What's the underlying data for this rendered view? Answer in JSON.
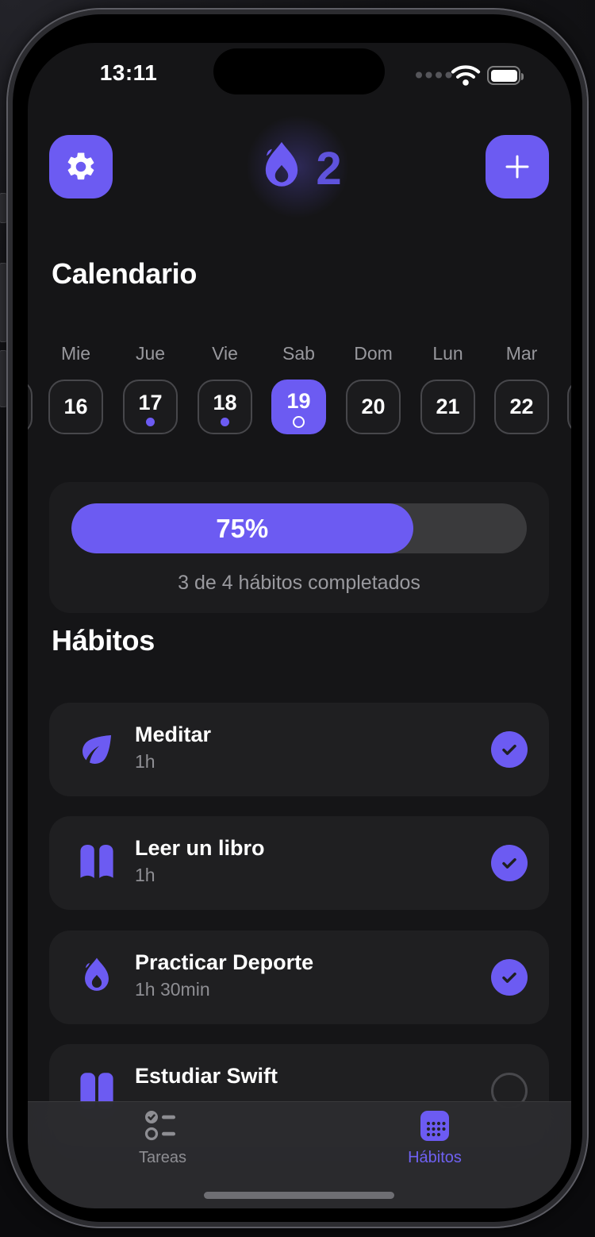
{
  "status_bar": {
    "time": "13:11"
  },
  "header": {
    "settings_icon": "gear-icon",
    "streak_icon": "flame-icon",
    "streak_count": "2",
    "add_icon": "plus-icon"
  },
  "calendar": {
    "title": "Calendario",
    "days": [
      {
        "label": "Mie",
        "date": "16",
        "selected": false,
        "dot": false
      },
      {
        "label": "Jue",
        "date": "17",
        "selected": false,
        "dot": true
      },
      {
        "label": "Vie",
        "date": "18",
        "selected": false,
        "dot": true
      },
      {
        "label": "Sab",
        "date": "19",
        "selected": true,
        "dot": false,
        "ring": true
      },
      {
        "label": "Dom",
        "date": "20",
        "selected": false,
        "dot": false
      },
      {
        "label": "Lun",
        "date": "21",
        "selected": false,
        "dot": false
      },
      {
        "label": "Mar",
        "date": "22",
        "selected": false,
        "dot": false
      }
    ]
  },
  "progress": {
    "percent": 75,
    "percent_label": "75%",
    "caption": "3 de 4 hábitos completados"
  },
  "habits": {
    "title": "Hábitos",
    "items": [
      {
        "name": "Meditar",
        "duration": "1h",
        "icon": "leaf-icon",
        "completed": true
      },
      {
        "name": "Leer un libro",
        "duration": "1h",
        "icon": "open-book-icon",
        "completed": true
      },
      {
        "name": "Practicar Deporte",
        "duration": "1h 30min",
        "icon": "flame-icon",
        "completed": true
      },
      {
        "name": "Estudiar Swift",
        "icon": "books-icon",
        "completed": false
      }
    ]
  },
  "tab_bar": {
    "items": [
      {
        "label": "Tareas",
        "icon": "checklist-icon",
        "active": false
      },
      {
        "label": "Hábitos",
        "icon": "calendar-icon",
        "active": true
      }
    ]
  },
  "colors": {
    "accent": "#6C5BF2",
    "streak_text": "#5F53DC",
    "screen_bg": "#151517",
    "card_bg": "#1F1F21"
  }
}
